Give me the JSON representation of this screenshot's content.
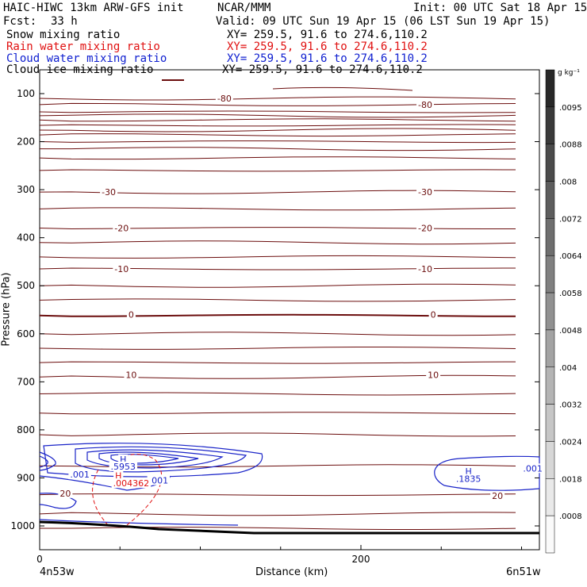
{
  "header": {
    "model": "HAIC-HIWC 13km ARW-GFS init",
    "org": "NCAR/MMM",
    "init": "Init: 00 UTC Sat 18 Apr 15",
    "fcst_label": "Fcst:",
    "fcst_value": "33 h",
    "valid": "Valid: 09 UTC Sun 19 Apr 15 (06 LST Sun 19 Apr 15)"
  },
  "fields": [
    {
      "name": "Snow mixing ratio",
      "xy": "XY= 259.5, 91.6 to 274.6,110.2",
      "color": "#000000"
    },
    {
      "name": "Rain water mixing ratio",
      "xy": "XY= 259.5, 91.6 to 274.6,110.2",
      "color": "#e01010"
    },
    {
      "name": "Cloud water mixing ratio",
      "xy": "XY= 259.5, 91.6 to 274.6,110.2",
      "color": "#1020d0"
    },
    {
      "name": "Cloud ice mixing ratio",
      "xy": "XY= 259.5, 91.6 to 274.6,110.2",
      "color": "#000000"
    }
  ],
  "colors": {
    "temperature": "#6b0d0d",
    "cloud_water": "#1a24c8",
    "rain_water": "#e01010",
    "terrain": "#000000"
  },
  "chart_data": {
    "type": "contour cross-section",
    "xlabel": "Distance (km)",
    "ylabel": "Pressure (hPa)",
    "x_range": [
      0,
      310
    ],
    "y_range": [
      1050,
      70
    ],
    "x_ticks": [
      0,
      200
    ],
    "y_ticks": [
      100,
      200,
      300,
      400,
      500,
      600,
      700,
      800,
      900,
      1000
    ],
    "x_endpoints": {
      "left": "4n53w",
      "right": "6n51w"
    },
    "isotherm_labels": [
      {
        "value": "-80",
        "x": 115,
        "p": 110
      },
      {
        "value": "-80",
        "x": 240,
        "p": 123
      },
      {
        "value": "-30",
        "x": 43,
        "p": 305
      },
      {
        "value": "-30",
        "x": 240,
        "p": 305
      },
      {
        "value": "-20",
        "x": 51,
        "p": 380
      },
      {
        "value": "-20",
        "x": 240,
        "p": 380
      },
      {
        "value": "-10",
        "x": 51,
        "p": 465
      },
      {
        "value": "-10",
        "x": 240,
        "p": 465
      },
      {
        "value": "0",
        "x": 57,
        "p": 560
      },
      {
        "value": "0",
        "x": 245,
        "p": 560
      },
      {
        "value": "10",
        "x": 57,
        "p": 685
      },
      {
        "value": "10",
        "x": 245,
        "p": 685
      },
      {
        "value": "20",
        "x": 16,
        "p": 932
      },
      {
        "value": "20",
        "x": 285,
        "p": 937
      }
    ],
    "isotherm_pressures": [
      110,
      123,
      138,
      146,
      155,
      166,
      176,
      186,
      200,
      215,
      234,
      260,
      305,
      340,
      380,
      410,
      440,
      465,
      500,
      530,
      562,
      600,
      630,
      660,
      690,
      725,
      765,
      810,
      875,
      935,
      975,
      1005
    ],
    "cloud_water_labels": [
      {
        "value": ".001",
        "x": 25,
        "p": 893
      },
      {
        "value": ".001",
        "x": 74,
        "p": 905
      },
      {
        "value": ".001",
        "x": 307,
        "p": 880
      },
      {
        "value": "H",
        "x": 52,
        "p": 861
      },
      {
        "value": ".5953",
        "x": 52,
        "p": 876
      },
      {
        "value": "H",
        "x": 267,
        "p": 886
      },
      {
        "value": ".1835",
        "x": 267,
        "p": 902
      }
    ],
    "rain_water_labels": [
      {
        "value": "H",
        "x": 49,
        "p": 895
      },
      {
        "value": ".004362",
        "x": 57,
        "p": 911
      }
    ],
    "colorbar": {
      "unit": "g kg⁻¹",
      "levels": [
        ".0095",
        ".0088",
        ".008",
        ".0072",
        ".0064",
        ".0058",
        ".0048",
        ".004",
        ".0032",
        ".0024",
        ".0018",
        ".0008"
      ]
    }
  }
}
